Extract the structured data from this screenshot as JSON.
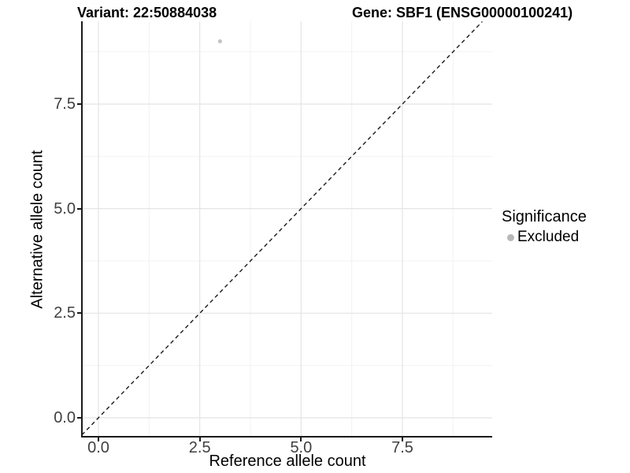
{
  "titles": {
    "variant": "Variant: 22:50884038",
    "gene": "Gene: SBF1 (ENSG00000100241)"
  },
  "chart_data": {
    "type": "scatter",
    "xlabel": "Reference allele count",
    "ylabel": "Alternative allele count",
    "xlim": [
      -0.41,
      9.71
    ],
    "ylim": [
      -0.45,
      9.47
    ],
    "x_major_ticks": [
      0.0,
      2.5,
      5.0,
      7.5
    ],
    "x_tick_labels": [
      "0.0",
      "2.5",
      "5.0",
      "7.5"
    ],
    "x_minor_ticks": [
      1.25,
      3.75,
      6.25,
      8.75
    ],
    "y_major_ticks": [
      0.0,
      2.5,
      5.0,
      7.5
    ],
    "y_tick_labels": [
      "0.0",
      "2.5",
      "5.0",
      "7.5"
    ],
    "y_minor_ticks": [
      1.25,
      3.75,
      6.25,
      8.75
    ],
    "grid": "major and minor, light grey on white",
    "points": [
      {
        "x": 3,
        "y": 9,
        "series": "Excluded",
        "color": "#c4c4c4"
      }
    ],
    "reference_line": {
      "equation": "y = x",
      "style": "dashed",
      "color": "#1a1a1a"
    },
    "legend": {
      "position": "right",
      "title": "Significance",
      "items": [
        {
          "label": "Excluded",
          "color": "#b8b8b8"
        }
      ]
    },
    "colors": {
      "grid_major": "#e4e4e4",
      "grid_minor": "#f2f2f2",
      "axis_line": "#1a1a1a",
      "tick_text": "#404040"
    }
  }
}
